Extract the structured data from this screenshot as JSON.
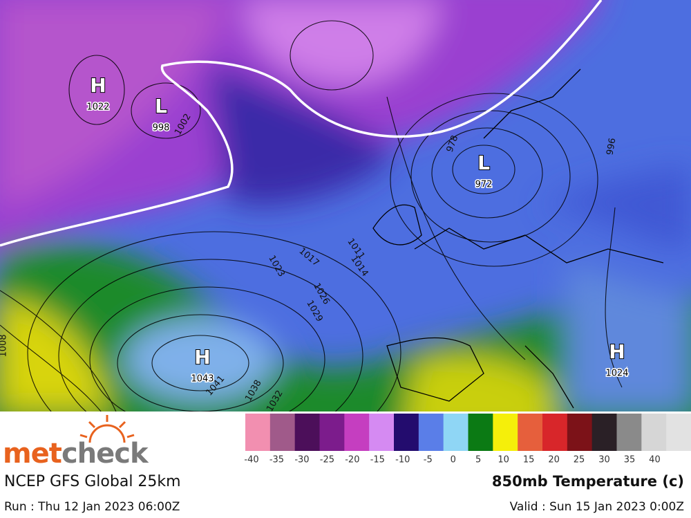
{
  "header": {
    "brand_prefix": "met",
    "brand_suffix": "check",
    "model": "NCEP GFS Global 25km",
    "run": "Run : Thu 12 Jan 2023 06:00Z",
    "product": "850mb Temperature (c)",
    "valid": "Valid : Sun 15 Jan 2023 0:00Z"
  },
  "legend": {
    "colors": [
      "#f28fb0",
      "#a05a8a",
      "#4c0f5a",
      "#7c1c8c",
      "#c53ec0",
      "#d58af2",
      "#230c6e",
      "#5a7ee8",
      "#8fd6f5",
      "#0b7a14",
      "#f5ef0a",
      "#e65f3c",
      "#d8262a",
      "#7c1218",
      "#2a2026",
      "#8a8a8a",
      "#d6d6d6"
    ],
    "labels": [
      -40,
      -35,
      -30,
      -25,
      -20,
      -15,
      -10,
      -5,
      0,
      5,
      10,
      15,
      20,
      25,
      30,
      35,
      40
    ]
  },
  "centers": [
    {
      "kind": "H",
      "value": 1022
    },
    {
      "kind": "L",
      "value": 998
    },
    {
      "kind": "L",
      "value": 972
    },
    {
      "kind": "H",
      "value": 1043
    },
    {
      "kind": "H",
      "value": 1024
    }
  ],
  "isobar_labels": [
    1017,
    1023,
    1026,
    1029,
    1011,
    1014,
    1002,
    1041,
    1038,
    1032,
    978,
    996,
    1008
  ]
}
